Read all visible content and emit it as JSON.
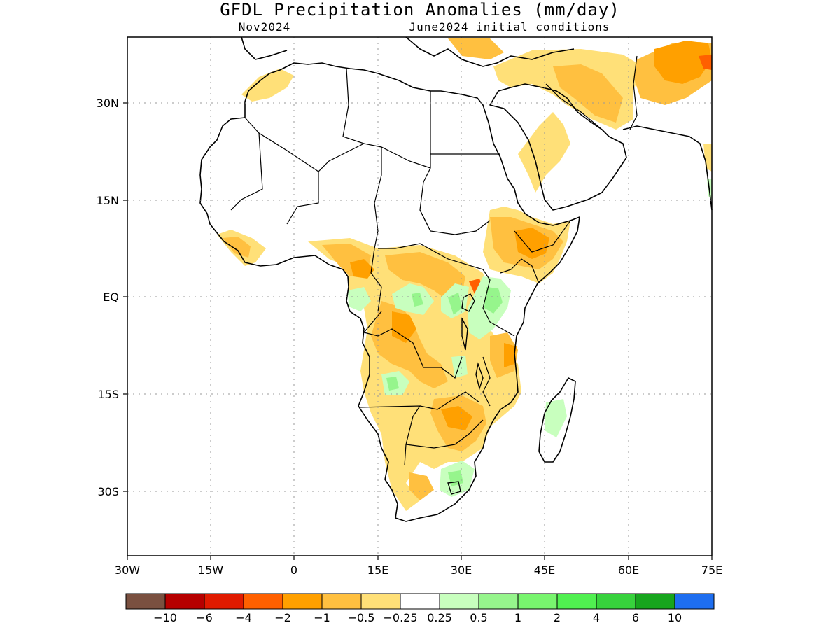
{
  "header": {
    "title": "GFDL Precipitation Anomalies (mm/day)",
    "left_subtitle": "Nov2024",
    "right_subtitle": "June2024 initial conditions"
  },
  "map": {
    "region": "Africa and Middle East",
    "lon_range": [
      -30,
      75
    ],
    "lat_range": [
      -40,
      40
    ],
    "lat_ticks": [
      {
        "value": 30,
        "label": "30N"
      },
      {
        "value": 15,
        "label": "15N"
      },
      {
        "value": 0,
        "label": "EQ"
      },
      {
        "value": -15,
        "label": "15S"
      },
      {
        "value": -30,
        "label": "30S"
      }
    ],
    "lon_ticks": [
      {
        "value": -30,
        "label": "30W"
      },
      {
        "value": -15,
        "label": "15W"
      },
      {
        "value": 0,
        "label": "0"
      },
      {
        "value": 15,
        "label": "15E"
      },
      {
        "value": 30,
        "label": "30E"
      },
      {
        "value": 45,
        "label": "45E"
      },
      {
        "value": 60,
        "label": "60E"
      },
      {
        "value": 75,
        "label": "75E"
      }
    ],
    "grid": true
  },
  "colorbar": {
    "colors": [
      "#7a5040",
      "#b60000",
      "#e01a00",
      "#ff6000",
      "#ffa000",
      "#ffc040",
      "#ffe078",
      "#ffffff",
      "#c8ffbe",
      "#96f58c",
      "#78f56e",
      "#50f050",
      "#37d23c",
      "#17a51d",
      "#1e6ef0"
    ],
    "labels": [
      "−10",
      "−6",
      "−4",
      "−2",
      "−1",
      "−0.5",
      "−0.25",
      "0.25",
      "0.5",
      "1",
      "2",
      "4",
      "6",
      "10"
    ]
  }
}
